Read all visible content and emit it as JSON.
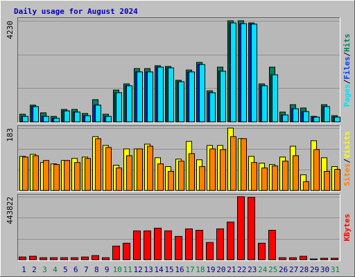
{
  "chart_data": [
    {
      "type": "bar",
      "title": "Daily usage for August 2024",
      "legend_separator": "/",
      "ylim": [
        0,
        4230
      ],
      "yticks": [
        4230
      ],
      "series": [
        {
          "name": "Hits",
          "color": "#008060",
          "values": [
            320,
            700,
            380,
            230,
            520,
            520,
            350,
            930,
            320,
            1330,
            1590,
            2230,
            2230,
            2350,
            2320,
            1740,
            2170,
            2490,
            1300,
            2290,
            4230,
            4230,
            4140,
            1590,
            2290,
            410,
            720,
            580,
            230,
            720,
            260
          ]
        },
        {
          "name": "Files",
          "color": "#0040ff",
          "values": [
            230,
            640,
            230,
            150,
            460,
            410,
            260,
            700,
            230,
            1220,
            1510,
            2090,
            2090,
            2290,
            2260,
            1680,
            2090,
            2400,
            1220,
            2120,
            4140,
            4110,
            4090,
            1510,
            1970,
            290,
            550,
            430,
            200,
            640,
            200
          ]
        },
        {
          "name": "Pages",
          "color": "#00e0ff",
          "values": [
            230,
            640,
            230,
            150,
            460,
            410,
            260,
            700,
            230,
            1220,
            1510,
            2090,
            2090,
            2290,
            2260,
            1680,
            2090,
            2400,
            1220,
            2120,
            4140,
            4110,
            4090,
            1510,
            1970,
            290,
            550,
            430,
            200,
            640,
            200
          ]
        }
      ]
    },
    {
      "type": "bar",
      "legend_separator": "/",
      "ylim": [
        0,
        183
      ],
      "yticks": [
        183
      ],
      "series": [
        {
          "name": "Visits",
          "color": "#ffff00",
          "values": [
            100,
            106,
            82,
            78,
            88,
            94,
            98,
            158,
            132,
            74,
            122,
            122,
            136,
            96,
            70,
            92,
            144,
            90,
            132,
            132,
            183,
            152,
            100,
            80,
            76,
            98,
            130,
            46,
            146,
            96,
            70
          ]
        },
        {
          "name": "Sites",
          "color": "#ff8000",
          "values": [
            98,
            102,
            88,
            76,
            88,
            82,
            94,
            152,
            126,
            66,
            102,
            122,
            130,
            78,
            56,
            86,
            108,
            70,
            122,
            120,
            158,
            152,
            82,
            66,
            72,
            86,
            102,
            26,
            120,
            56,
            62
          ]
        }
      ]
    },
    {
      "type": "bar",
      "ylim": [
        0,
        443822
      ],
      "yticks": [
        443822
      ],
      "categories": [
        "1",
        "2",
        "3",
        "4",
        "5",
        "6",
        "7",
        "8",
        "9",
        "10",
        "11",
        "12",
        "13",
        "14",
        "15",
        "16",
        "17",
        "18",
        "19",
        "20",
        "21",
        "22",
        "23",
        "24",
        "25",
        "26",
        "27",
        "28",
        "29",
        "30",
        "31"
      ],
      "category_color": "#000080",
      "highlight_color": "#008040",
      "highlight_indices": [
        2,
        3,
        9,
        10,
        16,
        17,
        23,
        24,
        30
      ],
      "series": [
        {
          "name": "KBytes",
          "color": "#ff0000",
          "values": [
            19000,
            24000,
            14000,
            14000,
            14000,
            14000,
            19000,
            29000,
            14000,
            96000,
            116000,
            203000,
            203000,
            222000,
            203000,
            164000,
            217000,
            207000,
            121000,
            217000,
            265000,
            443822,
            439000,
            116000,
            207000,
            14000,
            14000,
            24000,
            5000,
            10000,
            10000
          ]
        }
      ]
    }
  ]
}
